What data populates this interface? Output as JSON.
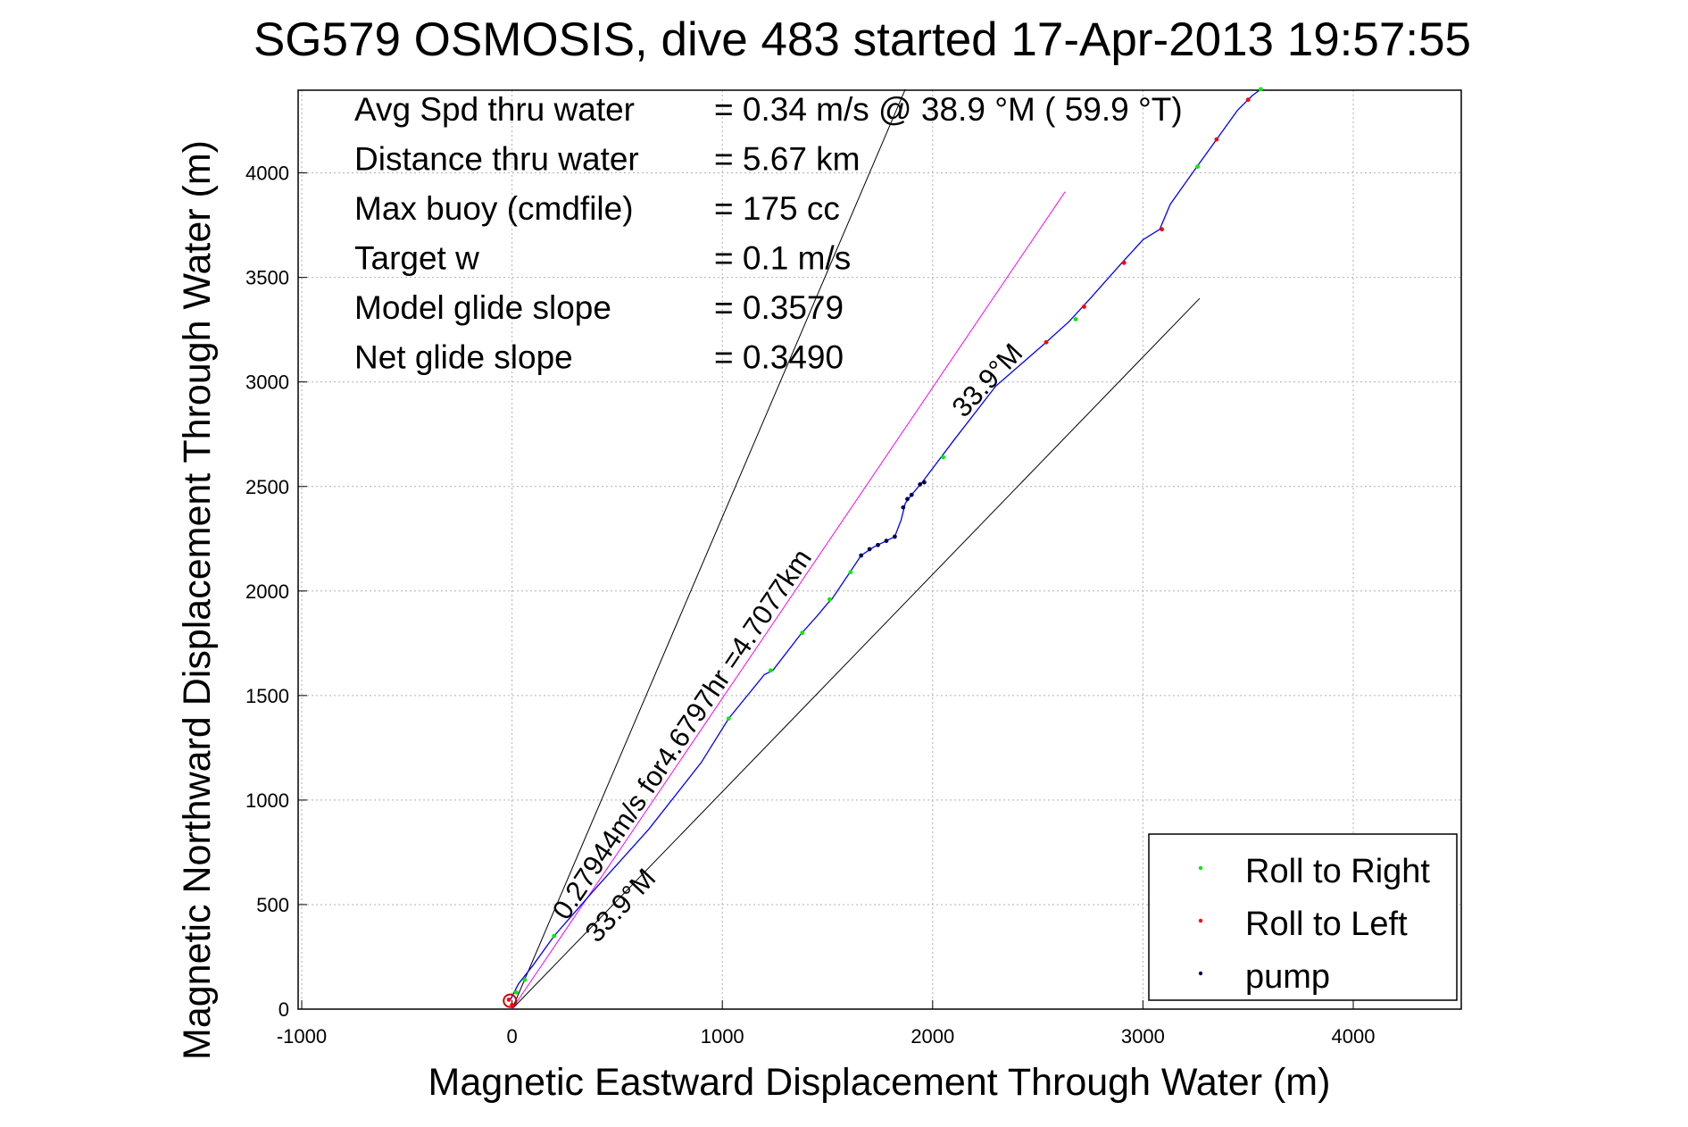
{
  "chart_data": {
    "type": "line",
    "title": "SG579 OSMOSIS, dive 483 started 17-Apr-2013 19:57:55",
    "xlabel": "Magnetic Eastward Displacement Through Water (m)",
    "ylabel": "Magnetic Northward Displacement Through Water (m)",
    "xlim": [
      -1000,
      4550
    ],
    "ylim": [
      0,
      4400
    ],
    "xticks": [
      -1000,
      0,
      1000,
      2000,
      3000,
      4000
    ],
    "xtick_labels": [
      "-1000",
      "0",
      "1000",
      "2000",
      "3000",
      "4000"
    ],
    "yticks": [
      0,
      500,
      1000,
      1500,
      2000,
      2500,
      3000,
      3500,
      4000
    ],
    "ytick_labels": [
      "0",
      "500",
      "1000",
      "1500",
      "2000",
      "2500",
      "3000",
      "3500",
      "4000"
    ],
    "grid": true,
    "legend_position": "bottom-right",
    "stats": [
      {
        "label": "Avg Spd thru water",
        "value": "=  0.34 m/s @  38.9 °M ( 59.9 °T)"
      },
      {
        "label": "Distance thru water",
        "value": "=  5.67 km"
      },
      {
        "label": "Max buoy (cmdfile)",
        "value": "= 175 cc"
      },
      {
        "label": "Target w",
        "value": "= 0.1 m/s"
      },
      {
        "label": "Model glide slope",
        "value": "= 0.3579"
      },
      {
        "label": "Net glide slope",
        "value": "= 0.3490"
      }
    ],
    "annotations": {
      "current": "0.27944m/s for4.6797hr =4.7077km",
      "heading_lower": "33.9°M",
      "heading_upper": "33.9°M"
    },
    "reference_lines": [
      {
        "name": "course-left",
        "color": "#000000",
        "points": [
          [
            0,
            0
          ],
          [
            1870,
            4400
          ]
        ]
      },
      {
        "name": "course-right",
        "color": "#000000",
        "points": [
          [
            0,
            0
          ],
          [
            3270,
            3400
          ]
        ]
      },
      {
        "name": "current-track",
        "color": "#ff00ff",
        "points": [
          [
            0,
            0
          ],
          [
            2630,
            3910
          ]
        ]
      }
    ],
    "track": {
      "color": "#0000ff",
      "points": [
        [
          -10,
          40
        ],
        [
          30,
          120
        ],
        [
          100,
          210
        ],
        [
          200,
          350
        ],
        [
          400,
          580
        ],
        [
          650,
          860
        ],
        [
          900,
          1180
        ],
        [
          1030,
          1390
        ],
        [
          1200,
          1600
        ],
        [
          1240,
          1620
        ],
        [
          1370,
          1790
        ],
        [
          1450,
          1880
        ],
        [
          1500,
          1940
        ],
        [
          1520,
          1960
        ],
        [
          1600,
          2080
        ],
        [
          1660,
          2170
        ],
        [
          1720,
          2210
        ],
        [
          1780,
          2240
        ],
        [
          1820,
          2260
        ],
        [
          1850,
          2340
        ],
        [
          1870,
          2420
        ],
        [
          1900,
          2460
        ],
        [
          1950,
          2520
        ],
        [
          2100,
          2720
        ],
        [
          2300,
          2980
        ],
        [
          2540,
          3190
        ],
        [
          2650,
          3290
        ],
        [
          2750,
          3400
        ],
        [
          2900,
          3570
        ],
        [
          3000,
          3680
        ],
        [
          3080,
          3730
        ],
        [
          3130,
          3850
        ],
        [
          3250,
          4020
        ],
        [
          3350,
          4160
        ],
        [
          3450,
          4300
        ],
        [
          3520,
          4370
        ],
        [
          3560,
          4400
        ]
      ]
    },
    "series": [
      {
        "name": "Roll to Right",
        "color": "#00ee00",
        "points": [
          [
            20,
            80
          ],
          [
            60,
            140
          ],
          [
            200,
            350
          ],
          [
            1030,
            1390
          ],
          [
            1230,
            1620
          ],
          [
            1380,
            1800
          ],
          [
            1510,
            1960
          ],
          [
            1610,
            2090
          ],
          [
            2050,
            2640
          ],
          [
            2680,
            3300
          ],
          [
            3260,
            4030
          ],
          [
            3560,
            4400
          ]
        ]
      },
      {
        "name": "Roll to Left",
        "color": "#ff0000",
        "points": [
          [
            -15,
            45
          ],
          [
            0,
            20
          ],
          [
            2540,
            3190
          ],
          [
            2720,
            3360
          ],
          [
            2910,
            3570
          ],
          [
            3090,
            3730
          ],
          [
            3350,
            4160
          ],
          [
            3500,
            4350
          ]
        ]
      },
      {
        "name": "pump",
        "color": "#000055",
        "points": [
          [
            1660,
            2170
          ],
          [
            1700,
            2200
          ],
          [
            1740,
            2220
          ],
          [
            1780,
            2240
          ],
          [
            1820,
            2260
          ],
          [
            1860,
            2400
          ],
          [
            1880,
            2440
          ],
          [
            1900,
            2460
          ],
          [
            1940,
            2510
          ],
          [
            1960,
            2520
          ]
        ]
      }
    ]
  }
}
